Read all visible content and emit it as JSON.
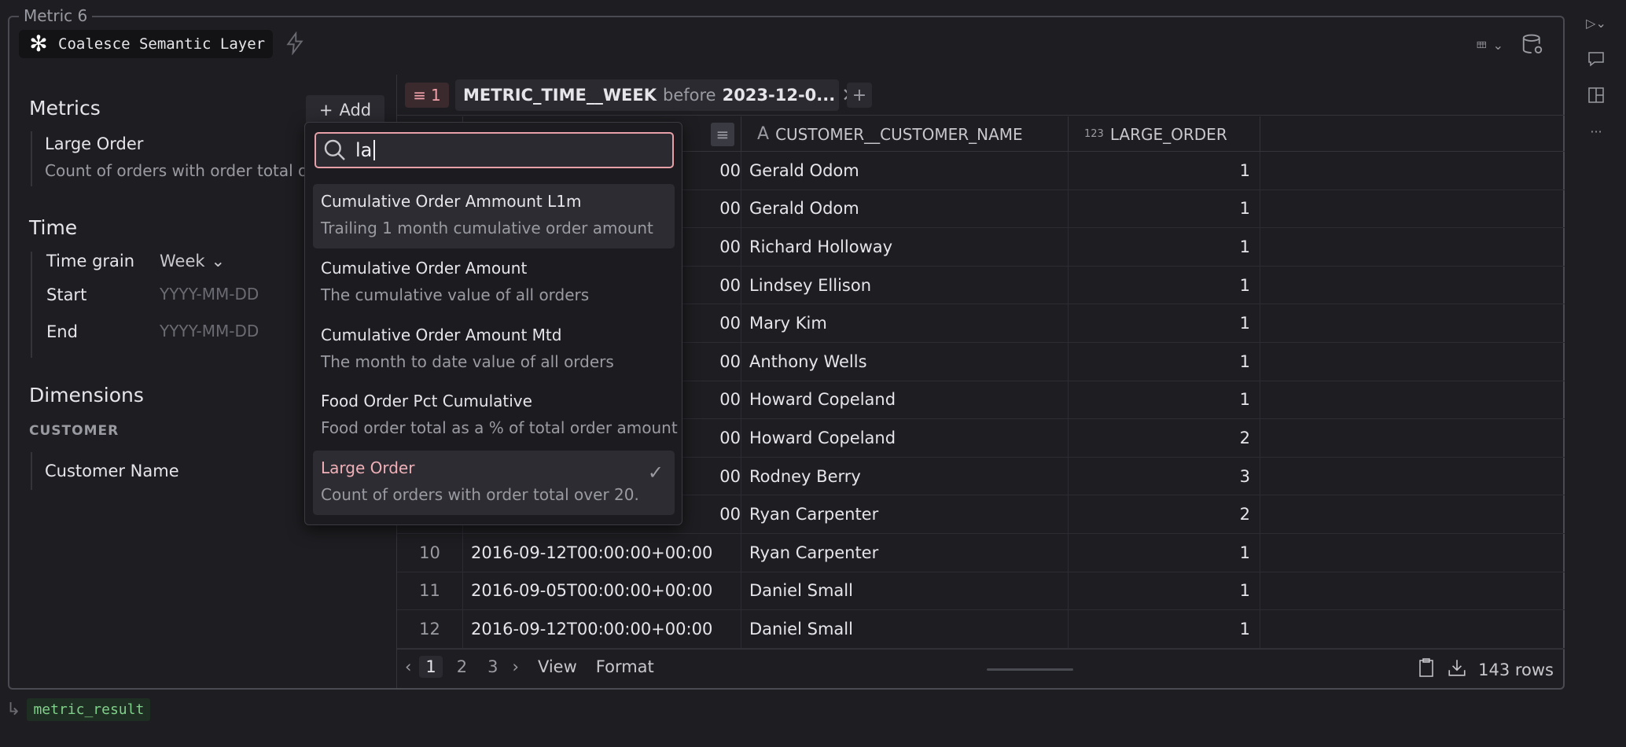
{
  "cell": {
    "title": "Metric 6",
    "source_label": "Coalesce Semantic Layer",
    "output_variable": "metric_result"
  },
  "left_panel": {
    "metrics_title": "Metrics",
    "add_label": "Add",
    "metric": {
      "name": "Large Order",
      "description": "Count of orders with order total over 20."
    },
    "time_title": "Time",
    "time_grain_label": "Time grain",
    "time_grain_value": "Week",
    "start_label": "Start",
    "start_placeholder": "YYYY-MM-DD",
    "end_label": "End",
    "end_placeholder": "YYYY-MM-DD",
    "dimensions_title": "Dimensions",
    "dimension_group": "CUSTOMER",
    "dimension_item": "Customer Name"
  },
  "filter": {
    "count": "1",
    "field": "METRIC_TIME__WEEK",
    "operator": "before",
    "value": "2023-12-0..."
  },
  "grid": {
    "columns": [
      {
        "type": "",
        "name": ""
      },
      {
        "type": "",
        "name": ""
      },
      {
        "type": "A",
        "name": "CUSTOMER__CUSTOMER_NAME"
      },
      {
        "type": "123",
        "name": "LARGE_ORDER"
      }
    ],
    "rows": [
      {
        "idx": "",
        "time": "00",
        "name": "Gerald Odom",
        "value": "1"
      },
      {
        "idx": "",
        "time": "00",
        "name": "Gerald Odom",
        "value": "1"
      },
      {
        "idx": "",
        "time": "00",
        "name": "Richard Holloway",
        "value": "1"
      },
      {
        "idx": "",
        "time": "00",
        "name": "Lindsey Ellison",
        "value": "1"
      },
      {
        "idx": "",
        "time": "00",
        "name": "Mary Kim",
        "value": "1"
      },
      {
        "idx": "",
        "time": "00",
        "name": "Anthony Wells",
        "value": "1"
      },
      {
        "idx": "",
        "time": "00",
        "name": "Howard Copeland",
        "value": "1"
      },
      {
        "idx": "",
        "time": "00",
        "name": "Howard Copeland",
        "value": "2"
      },
      {
        "idx": "",
        "time": "00",
        "name": "Rodney Berry",
        "value": "3"
      },
      {
        "idx": "",
        "time": "00",
        "name": "Ryan Carpenter",
        "value": "2"
      },
      {
        "idx": "10",
        "time": "2016-09-12T00:00:00+00:00",
        "name": "Ryan Carpenter",
        "value": "1"
      },
      {
        "idx": "11",
        "time": "2016-09-05T00:00:00+00:00",
        "name": "Daniel Small",
        "value": "1"
      },
      {
        "idx": "12",
        "time": "2016-09-12T00:00:00+00:00",
        "name": "Daniel Small",
        "value": "1"
      }
    ],
    "pages": [
      "1",
      "2",
      "3"
    ],
    "view_label": "View",
    "format_label": "Format",
    "row_count": "143 rows"
  },
  "dropdown": {
    "search_value": "la",
    "options": [
      {
        "title": "Cumulative Order Ammount L1m",
        "description": "Trailing 1 month cumulative order amount"
      },
      {
        "title": "Cumulative Order Amount",
        "description": "The cumulative value of all orders"
      },
      {
        "title": "Cumulative Order Amount Mtd",
        "description": "The month to date value of all orders"
      },
      {
        "title": "Food Order Pct Cumulative",
        "description": "Food order total as a % of total order amount"
      },
      {
        "title": "Large Order",
        "description": "Count of orders with order total over 20."
      }
    ]
  }
}
